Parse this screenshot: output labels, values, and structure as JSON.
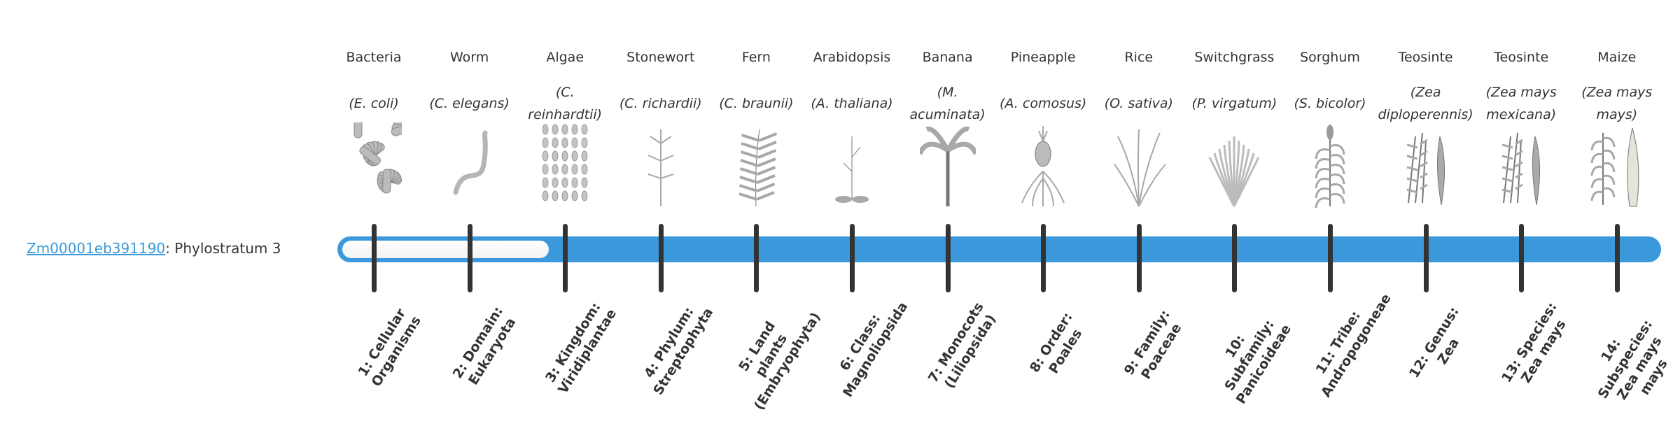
{
  "gene": {
    "id": "Zm00001eb391190",
    "suffix": ": Phylostratum 3"
  },
  "phylostratum_value": 3,
  "colors": {
    "bar": "#3a98db",
    "tick": "#333333",
    "link": "#3a98db"
  },
  "organisms": [
    {
      "common": "Bacteria",
      "scientific": "(E. coli)",
      "icon": "bacteria-icon"
    },
    {
      "common": "Worm",
      "scientific": "(C. elegans)",
      "icon": "worm-icon"
    },
    {
      "common": "Algae",
      "scientific": "(C. reinhardtii)",
      "icon": "algae-icon"
    },
    {
      "common": "Stonewort",
      "scientific": "(C. richardii)",
      "icon": "stonewort-icon"
    },
    {
      "common": "Fern",
      "scientific": "(C. braunii)",
      "icon": "fern-icon"
    },
    {
      "common": "Arabidopsis",
      "scientific": "(A. thaliana)",
      "icon": "arabidopsis-icon"
    },
    {
      "common": "Banana",
      "scientific": "(M. acuminata)",
      "icon": "banana-icon"
    },
    {
      "common": "Pineapple",
      "scientific": "(A. comosus)",
      "icon": "pineapple-icon"
    },
    {
      "common": "Rice",
      "scientific": "(O. sativa)",
      "icon": "rice-icon"
    },
    {
      "common": "Switchgrass",
      "scientific": "(P. virgatum)",
      "icon": "switchgrass-icon"
    },
    {
      "common": "Sorghum",
      "scientific": "(S. bicolor)",
      "icon": "sorghum-icon"
    },
    {
      "common": "Teosinte",
      "scientific": "(Zea diploperennis)",
      "icon": "teosinte-icon"
    },
    {
      "common": "Teosinte",
      "scientific": "(Zea mays mexicana)",
      "icon": "teosinte-icon"
    },
    {
      "common": "Maize",
      "scientific": "(Zea mays mays)",
      "icon": "maize-icon"
    }
  ],
  "strata": [
    "1: Cellular Organisms",
    "2: Domain: Eukaryota",
    "3: Kingdom: Viridiplantae",
    "4: Phylum: Streptophyta",
    "5: Land plants (Embryophyta)",
    "6: Class: Magnoliopsida",
    "7: Monocots (Liliopsida)",
    "8: Order: Poales",
    "9: Family: Poaceae",
    "10: Subfamily: Panicoideae",
    "11: Tribe: Andropogoneae",
    "12: Genus: Zea",
    "13: Species: Zea mays",
    "14: Subspecies: Zea mays mays"
  ]
}
